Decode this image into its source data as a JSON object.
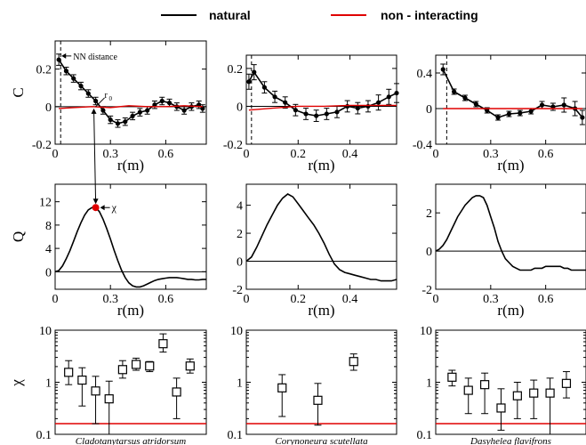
{
  "legend": {
    "entries": [
      {
        "label": "natural",
        "color": "#000000"
      },
      {
        "label": "non - interacting",
        "color": "#e00000"
      }
    ]
  },
  "colors": {
    "natural": "#000000",
    "noninteracting": "#e00000",
    "marker_fill": "#000000",
    "chi_marker": "#e00000"
  },
  "chart_data": [
    {
      "id": "C1",
      "type": "line",
      "ylabel": "C",
      "xlabel": "r(m)",
      "xlim": [
        0,
        0.82
      ],
      "ylim": [
        -0.2,
        0.35
      ],
      "xticks": [
        {
          "v": 0,
          "label": "0"
        },
        {
          "v": 0.3,
          "label": "0.3"
        },
        {
          "v": 0.6,
          "label": "0.6"
        }
      ],
      "yticks": [
        {
          "v": -0.2,
          "label": "-0.2"
        },
        {
          "v": 0,
          "label": "0"
        },
        {
          "v": 0.2,
          "label": "0.2"
        }
      ],
      "vline": 0.03,
      "annotations": [
        {
          "text": "NN distance",
          "x": 0.03,
          "y": 0.27
        },
        {
          "text": "r",
          "sub": "0",
          "x": 0.21,
          "y": -0.01
        }
      ],
      "series": [
        {
          "role": "natural",
          "x": [
            0.02,
            0.06,
            0.1,
            0.14,
            0.18,
            0.22,
            0.26,
            0.3,
            0.34,
            0.38,
            0.42,
            0.46,
            0.5,
            0.54,
            0.58,
            0.62,
            0.66,
            0.7,
            0.74,
            0.78,
            0.8
          ],
          "y": [
            0.25,
            0.19,
            0.15,
            0.11,
            0.07,
            0.03,
            -0.02,
            -0.07,
            -0.09,
            -0.08,
            -0.05,
            -0.03,
            -0.02,
            0.01,
            0.03,
            0.02,
            0.0,
            -0.02,
            0.0,
            0.01,
            -0.01
          ],
          "err": [
            0.03,
            0.02,
            0.02,
            0.02,
            0.02,
            0.02,
            0.02,
            0.02,
            0.02,
            0.02,
            0.02,
            0.02,
            0.02,
            0.02,
            0.02,
            0.02,
            0.02,
            0.02,
            0.02,
            0.02,
            0.02
          ]
        },
        {
          "role": "noninteracting",
          "x": [
            0.02,
            0.1,
            0.2,
            0.3,
            0.4,
            0.5,
            0.6,
            0.7,
            0.8
          ],
          "y": [
            -0.01,
            -0.005,
            0.0,
            -0.005,
            0.005,
            0.0,
            0.0,
            0.005,
            0.0
          ]
        }
      ]
    },
    {
      "id": "C2",
      "type": "line",
      "ylabel": "",
      "xlabel": "r(m)",
      "xlim": [
        0,
        0.58
      ],
      "ylim": [
        -0.2,
        0.27
      ],
      "xticks": [
        {
          "v": 0,
          "label": "0"
        },
        {
          "v": 0.2,
          "label": "0.2"
        },
        {
          "v": 0.4,
          "label": "0.4"
        }
      ],
      "yticks": [
        {
          "v": -0.2,
          "label": "-0.2"
        },
        {
          "v": 0,
          "label": "0"
        },
        {
          "v": 0.2,
          "label": "0.2"
        }
      ],
      "vline": 0.02,
      "series": [
        {
          "role": "natural",
          "x": [
            0.01,
            0.03,
            0.07,
            0.11,
            0.15,
            0.19,
            0.23,
            0.27,
            0.31,
            0.35,
            0.39,
            0.43,
            0.47,
            0.51,
            0.55,
            0.58
          ],
          "y": [
            0.13,
            0.18,
            0.1,
            0.05,
            0.02,
            -0.02,
            -0.04,
            -0.05,
            -0.04,
            -0.03,
            0.0,
            -0.01,
            0.0,
            0.02,
            0.05,
            0.07
          ],
          "err": [
            0.04,
            0.04,
            0.03,
            0.03,
            0.03,
            0.03,
            0.03,
            0.03,
            0.03,
            0.03,
            0.03,
            0.03,
            0.03,
            0.04,
            0.04,
            0.05
          ]
        },
        {
          "role": "noninteracting",
          "x": [
            0.01,
            0.1,
            0.2,
            0.3,
            0.4,
            0.5,
            0.58
          ],
          "y": [
            -0.02,
            -0.01,
            0.0,
            0.0,
            0.005,
            0.005,
            0.005
          ]
        }
      ]
    },
    {
      "id": "C3",
      "type": "line",
      "ylabel": "",
      "xlabel": "r(m)",
      "xlim": [
        0,
        0.82
      ],
      "ylim": [
        -0.4,
        0.6
      ],
      "xticks": [
        {
          "v": 0,
          "label": "0"
        },
        {
          "v": 0.3,
          "label": "0.3"
        },
        {
          "v": 0.6,
          "label": "0.6"
        }
      ],
      "yticks": [
        {
          "v": -0.4,
          "label": "-0.4"
        },
        {
          "v": 0,
          "label": "0"
        },
        {
          "v": 0.4,
          "label": "0.4"
        }
      ],
      "vline": 0.06,
      "series": [
        {
          "role": "natural",
          "x": [
            0.04,
            0.1,
            0.16,
            0.22,
            0.28,
            0.34,
            0.4,
            0.46,
            0.52,
            0.58,
            0.64,
            0.7,
            0.76,
            0.8
          ],
          "y": [
            0.44,
            0.19,
            0.12,
            0.05,
            -0.02,
            -0.1,
            -0.06,
            -0.05,
            -0.03,
            0.04,
            0.02,
            0.04,
            0.0,
            -0.1
          ],
          "err": [
            0.06,
            0.03,
            0.03,
            0.03,
            0.03,
            0.03,
            0.03,
            0.03,
            0.03,
            0.04,
            0.04,
            0.08,
            0.08,
            0.08
          ]
        },
        {
          "role": "noninteracting",
          "x": [
            0.04,
            0.2,
            0.4,
            0.6,
            0.8
          ],
          "y": [
            0.0,
            0.0,
            0.0,
            0.0,
            0.0
          ]
        }
      ]
    },
    {
      "id": "Q1",
      "type": "line",
      "ylabel": "Q",
      "xlabel": "r(m)",
      "xlim": [
        0,
        0.82
      ],
      "ylim": [
        -3,
        15
      ],
      "xticks": [
        {
          "v": 0,
          "label": "0"
        },
        {
          "v": 0.3,
          "label": "0.3"
        },
        {
          "v": 0.6,
          "label": "0.6"
        }
      ],
      "yticks": [
        {
          "v": 0,
          "label": "0"
        },
        {
          "v": 4,
          "label": "4"
        },
        {
          "v": 8,
          "label": "8"
        },
        {
          "v": 12,
          "label": "12"
        }
      ],
      "peak": {
        "x": 0.22,
        "y": 11,
        "label": "χ"
      },
      "series": [
        {
          "role": "natural",
          "x": [
            0,
            0.02,
            0.04,
            0.06,
            0.08,
            0.1,
            0.12,
            0.14,
            0.16,
            0.18,
            0.2,
            0.22,
            0.24,
            0.26,
            0.28,
            0.3,
            0.32,
            0.34,
            0.36,
            0.38,
            0.4,
            0.42,
            0.44,
            0.46,
            0.48,
            0.5,
            0.52,
            0.54,
            0.56,
            0.58,
            0.6,
            0.62,
            0.64,
            0.66,
            0.68,
            0.7,
            0.72,
            0.74,
            0.76,
            0.78,
            0.8,
            0.82
          ],
          "y": [
            0,
            0.2,
            1.0,
            2.2,
            3.6,
            5.2,
            6.9,
            8.4,
            9.7,
            10.6,
            11.0,
            11.0,
            10.3,
            9.0,
            7.4,
            5.6,
            3.7,
            1.9,
            0.3,
            -1.0,
            -1.9,
            -2.4,
            -2.6,
            -2.6,
            -2.4,
            -2.1,
            -1.8,
            -1.5,
            -1.3,
            -1.2,
            -1.1,
            -1.0,
            -1.0,
            -1.0,
            -1.1,
            -1.2,
            -1.3,
            -1.3,
            -1.4,
            -1.4,
            -1.3,
            -1.3
          ]
        }
      ]
    },
    {
      "id": "Q2",
      "type": "line",
      "ylabel": "",
      "xlabel": "r(m)",
      "xlim": [
        0,
        0.58
      ],
      "ylim": [
        -2,
        5.5
      ],
      "xticks": [
        {
          "v": 0,
          "label": "0"
        },
        {
          "v": 0.2,
          "label": "0.2"
        },
        {
          "v": 0.4,
          "label": "0.4"
        }
      ],
      "yticks": [
        {
          "v": -2,
          "label": "-2"
        },
        {
          "v": 0,
          "label": "0"
        },
        {
          "v": 2,
          "label": "2"
        },
        {
          "v": 4,
          "label": "4"
        }
      ],
      "series": [
        {
          "role": "natural",
          "x": [
            0,
            0.02,
            0.04,
            0.06,
            0.08,
            0.1,
            0.12,
            0.14,
            0.16,
            0.18,
            0.2,
            0.22,
            0.24,
            0.26,
            0.28,
            0.3,
            0.32,
            0.34,
            0.36,
            0.38,
            0.4,
            0.42,
            0.44,
            0.46,
            0.48,
            0.5,
            0.52,
            0.54,
            0.56,
            0.58
          ],
          "y": [
            0,
            0.3,
            1.0,
            1.8,
            2.6,
            3.3,
            4.0,
            4.5,
            4.8,
            4.6,
            4.1,
            3.6,
            3.1,
            2.6,
            2.0,
            1.3,
            0.5,
            -0.2,
            -0.6,
            -0.8,
            -0.9,
            -1.0,
            -1.1,
            -1.2,
            -1.3,
            -1.3,
            -1.4,
            -1.4,
            -1.4,
            -1.3
          ]
        }
      ]
    },
    {
      "id": "Q3",
      "type": "line",
      "ylabel": "",
      "xlabel": "r(m)",
      "xlim": [
        0,
        0.82
      ],
      "ylim": [
        -2,
        3.5
      ],
      "xticks": [
        {
          "v": 0,
          "label": "0"
        },
        {
          "v": 0.3,
          "label": "0.3"
        },
        {
          "v": 0.6,
          "label": "0.6"
        }
      ],
      "yticks": [
        {
          "v": -2,
          "label": "-2"
        },
        {
          "v": 0,
          "label": "0"
        },
        {
          "v": 2,
          "label": "2"
        }
      ],
      "series": [
        {
          "role": "natural",
          "x": [
            0,
            0.02,
            0.04,
            0.06,
            0.08,
            0.1,
            0.12,
            0.14,
            0.16,
            0.18,
            0.2,
            0.22,
            0.24,
            0.26,
            0.28,
            0.3,
            0.32,
            0.34,
            0.36,
            0.38,
            0.4,
            0.42,
            0.44,
            0.46,
            0.48,
            0.5,
            0.52,
            0.54,
            0.56,
            0.58,
            0.6,
            0.62,
            0.64,
            0.66,
            0.68,
            0.7,
            0.72,
            0.74,
            0.76,
            0.78,
            0.8,
            0.82
          ],
          "y": [
            0,
            0.1,
            0.3,
            0.6,
            1.0,
            1.4,
            1.8,
            2.1,
            2.4,
            2.6,
            2.8,
            2.9,
            2.9,
            2.8,
            2.4,
            1.8,
            1.2,
            0.5,
            0.0,
            -0.4,
            -0.6,
            -0.8,
            -0.9,
            -1.0,
            -1.0,
            -1.0,
            -1.0,
            -0.9,
            -0.9,
            -0.9,
            -0.8,
            -0.8,
            -0.8,
            -0.8,
            -0.8,
            -0.9,
            -0.9,
            -1.0,
            -1.0,
            -1.0,
            -1.0,
            -1.0
          ]
        }
      ]
    },
    {
      "id": "X1",
      "type": "scatter",
      "ylabel": "χ",
      "xlabel": "Cladotanytarsus atridorsum",
      "ylog": true,
      "ylim": [
        0.1,
        10
      ],
      "baseline": 0.16,
      "yticks": [
        {
          "v": 0.1,
          "label": "0.1"
        },
        {
          "v": 1,
          "label": "1"
        },
        {
          "v": 10,
          "label": "10"
        }
      ],
      "points": [
        {
          "v": 1.55,
          "lo": 0.9,
          "hi": 2.6
        },
        {
          "v": 1.1,
          "lo": 0.35,
          "hi": 1.9
        },
        {
          "v": 0.68,
          "lo": 0.16,
          "hi": 1.3
        },
        {
          "v": 0.48,
          "lo": 0.1,
          "hi": 1.05
        },
        {
          "v": 1.75,
          "lo": 1.2,
          "hi": 2.6
        },
        {
          "v": 2.2,
          "lo": 1.7,
          "hi": 2.9
        },
        {
          "v": 2.05,
          "lo": 1.6,
          "hi": 2.5
        },
        {
          "v": 5.5,
          "lo": 3.8,
          "hi": 8.5
        },
        {
          "v": 0.65,
          "lo": 0.2,
          "hi": 1.2
        },
        {
          "v": 2.05,
          "lo": 1.5,
          "hi": 2.8
        }
      ]
    },
    {
      "id": "X2",
      "type": "scatter",
      "ylabel": "",
      "xlabel": "Corynoneura scutellata",
      "ylog": true,
      "ylim": [
        0.1,
        10
      ],
      "baseline": 0.16,
      "yticks": [
        {
          "v": 0.1,
          "label": "0.1"
        },
        {
          "v": 1,
          "label": "1"
        },
        {
          "v": 10,
          "label": "10"
        }
      ],
      "points": [
        {
          "v": 0.78,
          "lo": 0.22,
          "hi": 1.4
        },
        {
          "v": 0.45,
          "lo": 0.15,
          "hi": 0.95
        },
        {
          "v": 2.5,
          "lo": 1.7,
          "hi": 3.5
        }
      ]
    },
    {
      "id": "X3",
      "type": "scatter",
      "ylabel": "",
      "xlabel": "Dasyhelea flavifrons",
      "ylog": true,
      "ylim": [
        0.1,
        10
      ],
      "baseline": 0.16,
      "yticks": [
        {
          "v": 0.1,
          "label": "0.1"
        },
        {
          "v": 1,
          "label": "1"
        },
        {
          "v": 10,
          "label": "10"
        }
      ],
      "points": [
        {
          "v": 1.25,
          "lo": 0.85,
          "hi": 1.7
        },
        {
          "v": 0.7,
          "lo": 0.25,
          "hi": 1.2
        },
        {
          "v": 0.9,
          "lo": 0.25,
          "hi": 1.5
        },
        {
          "v": 0.32,
          "lo": 0.12,
          "hi": 0.75
        },
        {
          "v": 0.55,
          "lo": 0.2,
          "hi": 1.0
        },
        {
          "v": 0.62,
          "lo": 0.2,
          "hi": 1.1
        },
        {
          "v": 0.62,
          "lo": 0.1,
          "hi": 1.2
        },
        {
          "v": 0.95,
          "lo": 0.5,
          "hi": 1.6
        }
      ]
    }
  ]
}
